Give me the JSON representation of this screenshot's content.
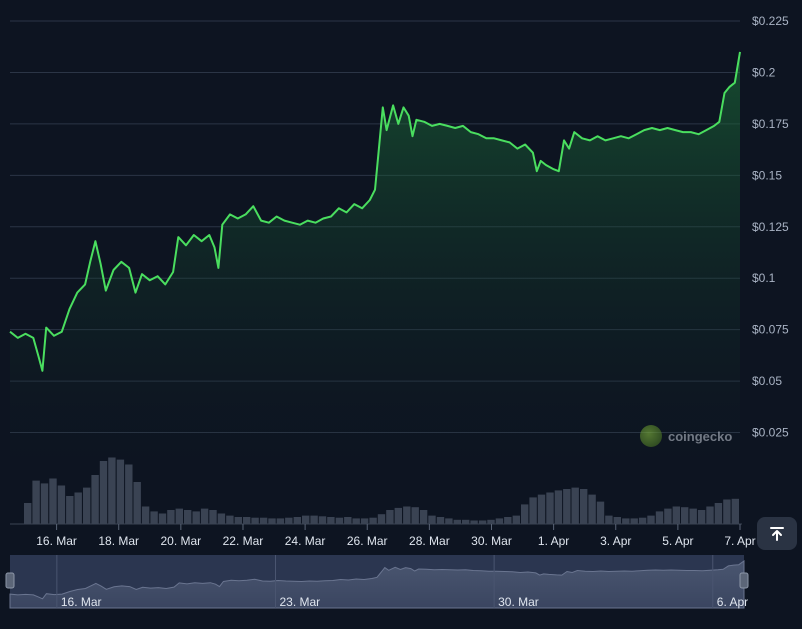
{
  "chart_data": {
    "type": "area",
    "y_axis_position": "right",
    "ylim": [
      0,
      0.225
    ],
    "y_ticks": [
      {
        "value": 0.025,
        "label": "$0.025"
      },
      {
        "value": 0.05,
        "label": "$0.05"
      },
      {
        "value": 0.075,
        "label": "$0.075"
      },
      {
        "value": 0.1,
        "label": "$0.1"
      },
      {
        "value": 0.125,
        "label": "$0.125"
      },
      {
        "value": 0.15,
        "label": "$0.15"
      },
      {
        "value": 0.175,
        "label": "$0.175"
      },
      {
        "value": 0.2,
        "label": "$0.2"
      },
      {
        "value": 0.225,
        "label": "$0.225"
      }
    ],
    "x_range": [
      "2025-03-14T12:00",
      "2025-04-07T00:00"
    ],
    "x_ticks": [
      {
        "date": "2025-03-16",
        "label": "16. Mar"
      },
      {
        "date": "2025-03-18",
        "label": "18. Mar"
      },
      {
        "date": "2025-03-20",
        "label": "20. Mar"
      },
      {
        "date": "2025-03-22",
        "label": "22. Mar"
      },
      {
        "date": "2025-03-24",
        "label": "24. Mar"
      },
      {
        "date": "2025-03-26",
        "label": "26. Mar"
      },
      {
        "date": "2025-03-28",
        "label": "28. Mar"
      },
      {
        "date": "2025-03-30",
        "label": "30. Mar"
      },
      {
        "date": "2025-04-01",
        "label": "1. Apr"
      },
      {
        "date": "2025-04-03",
        "label": "3. Apr"
      },
      {
        "date": "2025-04-05",
        "label": "5. Apr"
      },
      {
        "date": "2025-04-07",
        "label": "7. Apr"
      }
    ],
    "grid": true,
    "series": [
      {
        "kind": "price",
        "color": "#4ade5f",
        "points": [
          [
            "2025-03-14T12:00",
            0.074
          ],
          [
            "2025-03-14T18:00",
            0.071
          ],
          [
            "2025-03-15T00:00",
            0.073
          ],
          [
            "2025-03-15T06:00",
            0.071
          ],
          [
            "2025-03-15T10:00",
            0.062
          ],
          [
            "2025-03-15T13:00",
            0.055
          ],
          [
            "2025-03-15T16:00",
            0.076
          ],
          [
            "2025-03-15T22:00",
            0.072
          ],
          [
            "2025-03-16T04:00",
            0.074
          ],
          [
            "2025-03-16T10:00",
            0.085
          ],
          [
            "2025-03-16T16:00",
            0.093
          ],
          [
            "2025-03-16T22:00",
            0.097
          ],
          [
            "2025-03-17T02:00",
            0.108
          ],
          [
            "2025-03-17T06:00",
            0.118
          ],
          [
            "2025-03-17T10:00",
            0.107
          ],
          [
            "2025-03-17T14:00",
            0.094
          ],
          [
            "2025-03-17T20:00",
            0.104
          ],
          [
            "2025-03-18T02:00",
            0.108
          ],
          [
            "2025-03-18T08:00",
            0.105
          ],
          [
            "2025-03-18T13:00",
            0.093
          ],
          [
            "2025-03-18T18:00",
            0.102
          ],
          [
            "2025-03-19T00:00",
            0.099
          ],
          [
            "2025-03-19T06:00",
            0.101
          ],
          [
            "2025-03-19T12:00",
            0.097
          ],
          [
            "2025-03-19T18:00",
            0.103
          ],
          [
            "2025-03-19T22:00",
            0.12
          ],
          [
            "2025-03-20T04:00",
            0.116
          ],
          [
            "2025-03-20T10:00",
            0.121
          ],
          [
            "2025-03-20T16:00",
            0.118
          ],
          [
            "2025-03-20T22:00",
            0.121
          ],
          [
            "2025-03-21T02:00",
            0.115
          ],
          [
            "2025-03-21T05:00",
            0.105
          ],
          [
            "2025-03-21T08:00",
            0.126
          ],
          [
            "2025-03-21T14:00",
            0.131
          ],
          [
            "2025-03-21T20:00",
            0.129
          ],
          [
            "2025-03-22T02:00",
            0.131
          ],
          [
            "2025-03-22T08:00",
            0.135
          ],
          [
            "2025-03-22T14:00",
            0.128
          ],
          [
            "2025-03-22T20:00",
            0.127
          ],
          [
            "2025-03-23T02:00",
            0.13
          ],
          [
            "2025-03-23T08:00",
            0.128
          ],
          [
            "2025-03-23T14:00",
            0.127
          ],
          [
            "2025-03-23T20:00",
            0.126
          ],
          [
            "2025-03-24T02:00",
            0.128
          ],
          [
            "2025-03-24T08:00",
            0.127
          ],
          [
            "2025-03-24T14:00",
            0.129
          ],
          [
            "2025-03-24T20:00",
            0.13
          ],
          [
            "2025-03-25T02:00",
            0.134
          ],
          [
            "2025-03-25T08:00",
            0.132
          ],
          [
            "2025-03-25T14:00",
            0.136
          ],
          [
            "2025-03-25T20:00",
            0.134
          ],
          [
            "2025-03-26T02:00",
            0.138
          ],
          [
            "2025-03-26T06:00",
            0.143
          ],
          [
            "2025-03-26T09:00",
            0.163
          ],
          [
            "2025-03-26T12:00",
            0.183
          ],
          [
            "2025-03-26T15:00",
            0.172
          ],
          [
            "2025-03-26T20:00",
            0.184
          ],
          [
            "2025-03-27T00:00",
            0.175
          ],
          [
            "2025-03-27T04:00",
            0.183
          ],
          [
            "2025-03-27T08:00",
            0.179
          ],
          [
            "2025-03-27T11:00",
            0.169
          ],
          [
            "2025-03-27T14:00",
            0.177
          ],
          [
            "2025-03-27T20:00",
            0.176
          ],
          [
            "2025-03-28T02:00",
            0.174
          ],
          [
            "2025-03-28T08:00",
            0.175
          ],
          [
            "2025-03-28T14:00",
            0.174
          ],
          [
            "2025-03-28T20:00",
            0.173
          ],
          [
            "2025-03-29T02:00",
            0.174
          ],
          [
            "2025-03-29T08:00",
            0.171
          ],
          [
            "2025-03-29T14:00",
            0.17
          ],
          [
            "2025-03-29T20:00",
            0.168
          ],
          [
            "2025-03-30T02:00",
            0.168
          ],
          [
            "2025-03-30T08:00",
            0.167
          ],
          [
            "2025-03-30T14:00",
            0.166
          ],
          [
            "2025-03-30T20:00",
            0.163
          ],
          [
            "2025-03-31T02:00",
            0.165
          ],
          [
            "2025-03-31T08:00",
            0.161
          ],
          [
            "2025-03-31T11:00",
            0.152
          ],
          [
            "2025-03-31T14:00",
            0.157
          ],
          [
            "2025-03-31T18:00",
            0.155
          ],
          [
            "2025-04-01T00:00",
            0.153
          ],
          [
            "2025-04-01T04:00",
            0.152
          ],
          [
            "2025-04-01T08:00",
            0.167
          ],
          [
            "2025-04-01T12:00",
            0.163
          ],
          [
            "2025-04-01T16:00",
            0.171
          ],
          [
            "2025-04-01T22:00",
            0.168
          ],
          [
            "2025-04-02T04:00",
            0.167
          ],
          [
            "2025-04-02T10:00",
            0.169
          ],
          [
            "2025-04-02T16:00",
            0.167
          ],
          [
            "2025-04-02T22:00",
            0.168
          ],
          [
            "2025-04-03T04:00",
            0.169
          ],
          [
            "2025-04-03T10:00",
            0.168
          ],
          [
            "2025-04-03T16:00",
            0.17
          ],
          [
            "2025-04-03T22:00",
            0.172
          ],
          [
            "2025-04-04T04:00",
            0.173
          ],
          [
            "2025-04-04T10:00",
            0.172
          ],
          [
            "2025-04-04T16:00",
            0.173
          ],
          [
            "2025-04-04T22:00",
            0.172
          ],
          [
            "2025-04-05T04:00",
            0.171
          ],
          [
            "2025-04-05T10:00",
            0.171
          ],
          [
            "2025-04-05T16:00",
            0.17
          ],
          [
            "2025-04-05T22:00",
            0.172
          ],
          [
            "2025-04-06T04:00",
            0.174
          ],
          [
            "2025-04-06T08:00",
            0.176
          ],
          [
            "2025-04-06T12:00",
            0.19
          ],
          [
            "2025-04-06T16:00",
            0.193
          ],
          [
            "2025-04-06T20:00",
            0.195
          ],
          [
            "2025-04-07T00:00",
            0.21
          ]
        ]
      },
      {
        "kind": "volume",
        "color": "#3a4353",
        "relative_heights": [
          0.3,
          0.62,
          0.58,
          0.65,
          0.55,
          0.4,
          0.45,
          0.52,
          0.7,
          0.9,
          0.95,
          0.92,
          0.85,
          0.6,
          0.25,
          0.18,
          0.15,
          0.2,
          0.22,
          0.2,
          0.18,
          0.22,
          0.2,
          0.15,
          0.12,
          0.1,
          0.1,
          0.09,
          0.09,
          0.08,
          0.08,
          0.09,
          0.1,
          0.12,
          0.12,
          0.11,
          0.1,
          0.09,
          0.1,
          0.08,
          0.08,
          0.09,
          0.14,
          0.2,
          0.23,
          0.25,
          0.24,
          0.2,
          0.12,
          0.1,
          0.08,
          0.06,
          0.06,
          0.05,
          0.05,
          0.06,
          0.08,
          0.1,
          0.12,
          0.28,
          0.38,
          0.42,
          0.45,
          0.48,
          0.5,
          0.52,
          0.5,
          0.42,
          0.32,
          0.12,
          0.1,
          0.08,
          0.08,
          0.09,
          0.12,
          0.18,
          0.22,
          0.25,
          0.24,
          0.22,
          0.2,
          0.25,
          0.3,
          0.35,
          0.36
        ]
      }
    ],
    "navigator": {
      "x_ticks": [
        {
          "date": "2025-03-16",
          "label": "16. Mar"
        },
        {
          "date": "2025-03-23",
          "label": "23. Mar"
        },
        {
          "date": "2025-03-30",
          "label": "30. Mar"
        },
        {
          "date": "2025-04-06",
          "label": "6. Apr"
        }
      ]
    }
  },
  "watermark": {
    "text": "coingecko",
    "icon": "coingecko-logo-icon"
  },
  "controls": {
    "scroll_top_icon": "arrow-up-to-line-icon"
  }
}
